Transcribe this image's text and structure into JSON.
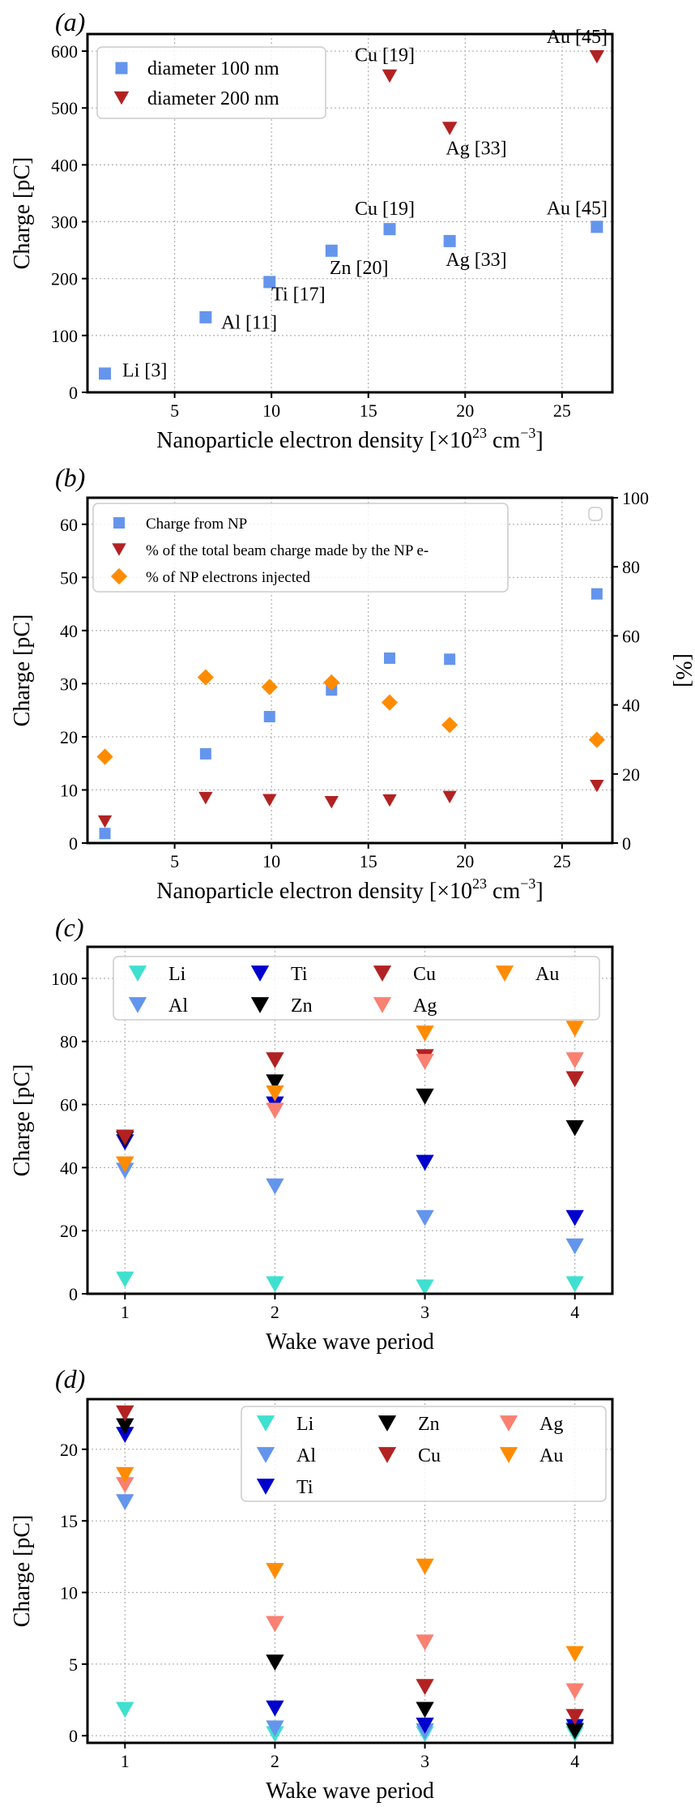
{
  "chart_data": [
    {
      "panel": "(a)",
      "type": "scatter",
      "xlabel": "Nanoparticle electron density [×10",
      "xlabel_sup": "23",
      "xlabel_unit": " cm",
      "xlabel_unit_sup": "−3",
      "xlabel_end": "]",
      "ylabel": "Charge [pC]",
      "xlim": [
        0.5,
        27.6
      ],
      "ylim": [
        0,
        630
      ],
      "xticks": [
        5,
        10,
        15,
        20,
        25
      ],
      "yticks": [
        0,
        100,
        200,
        300,
        400,
        500,
        600
      ],
      "grid": true,
      "legend_position": "upper-left",
      "series": [
        {
          "name": "diameter 100 nm",
          "marker": "square",
          "color": "#6495ED",
          "x": [
            1.4,
            6.6,
            9.9,
            13.1,
            16.1,
            19.2,
            26.8
          ],
          "y": [
            33,
            132,
            194,
            249,
            287,
            266,
            291
          ]
        },
        {
          "name": "diameter 200 nm",
          "marker": "triangle-down",
          "color": "#B22222",
          "x": [
            16.1,
            19.2,
            26.8
          ],
          "y": [
            556,
            464,
            590
          ]
        }
      ],
      "annotations": [
        {
          "text": "Li [3]",
          "x": 2.3,
          "y": 28
        },
        {
          "text": "Al [11]",
          "x": 7.4,
          "y": 112
        },
        {
          "text": "Ti [17]",
          "x": 10.0,
          "y": 162
        },
        {
          "text": "Zn [20]",
          "x": 13.0,
          "y": 208
        },
        {
          "text": "Cu [19]",
          "x": 14.3,
          "y": 312
        },
        {
          "text": "Ag [33]",
          "x": 19.0,
          "y": 222
        },
        {
          "text": "Au [45]",
          "x": 24.2,
          "y": 313
        },
        {
          "text": "Cu [19]",
          "x": 14.3,
          "y": 582
        },
        {
          "text": "Ag [33]",
          "x": 19.0,
          "y": 418
        },
        {
          "text": "Au [45]",
          "x": 24.2,
          "y": 614
        }
      ]
    },
    {
      "panel": "(b)",
      "type": "scatter",
      "xlabel": "Nanoparticle electron density [×10",
      "xlabel_sup": "23",
      "xlabel_unit": " cm",
      "xlabel_unit_sup": "−3",
      "xlabel_end": "]",
      "ylabel": "Charge [pC]",
      "y2label": "[%]",
      "xlim": [
        0.5,
        27.6
      ],
      "ylim": [
        0,
        65
      ],
      "y2lim": [
        0,
        100
      ],
      "xticks": [
        5,
        10,
        15,
        20,
        25
      ],
      "yticks": [
        0,
        10,
        20,
        30,
        40,
        50,
        60
      ],
      "y2ticks": [
        0,
        20,
        40,
        60,
        80,
        100
      ],
      "grid": true,
      "legend_position": "upper-left",
      "x": [
        1.4,
        6.6,
        9.9,
        13.1,
        16.1,
        19.2,
        26.8
      ],
      "series": [
        {
          "name": "Charge from NP",
          "marker": "square",
          "color": "#6495ED",
          "axis": "left",
          "y": [
            1.8,
            16.8,
            23.8,
            28.8,
            34.8,
            34.6,
            46.9
          ]
        },
        {
          "name": "% of the total beam charge made by the NP e-",
          "marker": "triangle-down",
          "color": "#B22222",
          "axis": "right",
          "y": [
            6.2,
            13.0,
            12.4,
            11.8,
            12.3,
            13.3,
            16.5
          ]
        },
        {
          "name": "% of NP electrons injected",
          "marker": "diamond",
          "color": "#FF8C00",
          "axis": "right",
          "y": [
            25.0,
            48.0,
            45.2,
            46.5,
            40.7,
            34.2,
            29.9
          ]
        }
      ]
    },
    {
      "panel": "(c)",
      "type": "scatter",
      "xlabel": "Wake wave period",
      "ylabel": "Charge [pC]",
      "xlim": [
        0.75,
        4.25
      ],
      "ylim": [
        0,
        110
      ],
      "xticks": [
        1,
        2,
        3,
        4
      ],
      "yticks": [
        0,
        20,
        40,
        60,
        80,
        100
      ],
      "grid": true,
      "legend_position": "upper-center",
      "legend_columns": 4,
      "x": [
        1,
        2,
        3,
        4
      ],
      "series": [
        {
          "name": "Li",
          "color": "#40E0D0",
          "y": [
            4.5,
            3,
            2,
            3
          ]
        },
        {
          "name": "Al",
          "color": "#6495ED",
          "y": [
            39,
            34,
            24,
            15
          ]
        },
        {
          "name": "Ti",
          "color": "#0000CD",
          "y": [
            48,
            60,
            41.5,
            24
          ]
        },
        {
          "name": "Zn",
          "color": "#000000",
          "y": [
            49,
            67,
            62.5,
            52.5
          ]
        },
        {
          "name": "Cu",
          "color": "#B22222",
          "y": [
            49.5,
            74,
            75,
            68
          ]
        },
        {
          "name": "Ag",
          "color": "#FA8072",
          "y": [
            41,
            58,
            73.5,
            74
          ]
        },
        {
          "name": "Au",
          "color": "#FF8C00",
          "y": [
            41,
            63.5,
            82.5,
            84
          ]
        }
      ],
      "legend_order": [
        "Li",
        "Ti",
        "Cu",
        "Au",
        "Al",
        "Zn",
        "Ag"
      ]
    },
    {
      "panel": "(d)",
      "type": "scatter",
      "xlabel": "Wake wave period",
      "ylabel": "Charge [pC]",
      "xlim": [
        0.75,
        4.25
      ],
      "ylim": [
        -0.5,
        23.5
      ],
      "xticks": [
        1,
        2,
        3,
        4
      ],
      "yticks": [
        0,
        5,
        10,
        15,
        20
      ],
      "grid": true,
      "legend_position": "upper-right",
      "legend_columns": 3,
      "x": [
        1,
        2,
        3,
        4
      ],
      "series": [
        {
          "name": "Li",
          "color": "#40E0D0",
          "y": [
            1.8,
            0.1,
            0.1,
            0.1
          ]
        },
        {
          "name": "Al",
          "color": "#6495ED",
          "y": [
            16.3,
            0.5,
            0.3,
            0.4
          ]
        },
        {
          "name": "Ti",
          "color": "#0000CD",
          "y": [
            21.0,
            1.9,
            0.7,
            0.6
          ]
        },
        {
          "name": "Zn",
          "color": "#000000",
          "y": [
            21.6,
            5.1,
            1.8,
            0.3
          ]
        },
        {
          "name": "Cu",
          "color": "#B22222",
          "y": [
            22.5,
            7.8,
            3.4,
            1.3
          ]
        },
        {
          "name": "Ag",
          "color": "#FA8072",
          "y": [
            17.5,
            7.8,
            6.5,
            3.1
          ]
        },
        {
          "name": "Au",
          "color": "#FF8C00",
          "y": [
            18.2,
            11.5,
            11.8,
            5.7
          ]
        }
      ],
      "legend_order": [
        "Li",
        "Zn",
        "Ag",
        "Al",
        "Cu",
        "Au",
        "Ti"
      ]
    }
  ]
}
